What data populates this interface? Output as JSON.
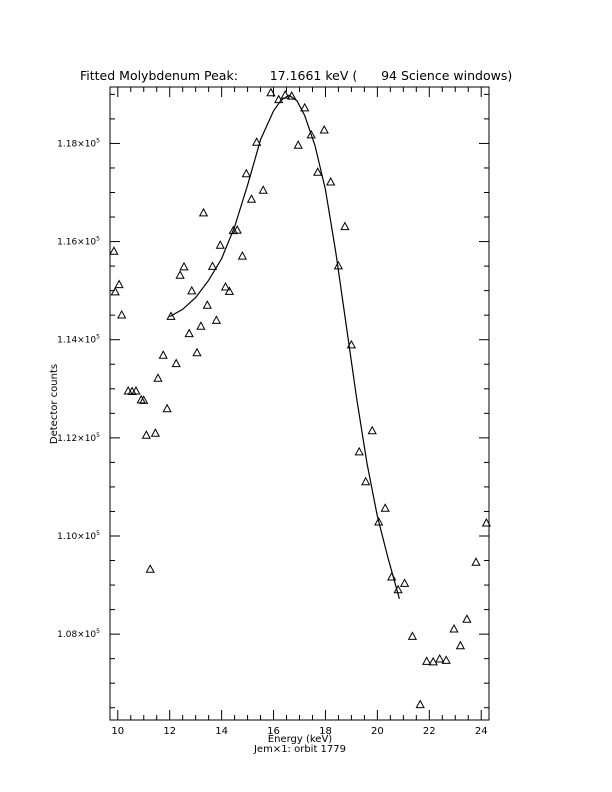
{
  "chart_data": {
    "type": "scatter",
    "title": "Fitted Molybdenum Peak:        17.1661 keV (      94 Science windows)",
    "xlabel": "Energy (keV)",
    "ylabel": "Detector counts",
    "footer": "Jem×1: orbit 1779",
    "xlim": [
      9.7,
      24.3
    ],
    "ylim": [
      1.0625,
      1.1915
    ],
    "y_exponent": "5",
    "x_ticks": [
      10,
      12,
      14,
      16,
      18,
      20,
      22,
      24
    ],
    "y_ticks": [
      {
        "value": 1.08,
        "label": "1.08×10"
      },
      {
        "value": 1.1,
        "label": "1.10×10"
      },
      {
        "value": 1.12,
        "label": "1.12×10"
      },
      {
        "value": 1.14,
        "label": "1.14×10"
      },
      {
        "value": 1.16,
        "label": "1.16×10"
      },
      {
        "value": 1.18,
        "label": "1.18×10"
      }
    ],
    "series": [
      {
        "marker": "triangle",
        "points": [
          [
            9.85,
            1.158
          ],
          [
            9.9,
            1.1497
          ],
          [
            10.05,
            1.1512
          ],
          [
            10.15,
            1.145
          ],
          [
            10.4,
            1.1295
          ],
          [
            10.55,
            1.1294
          ],
          [
            10.7,
            1.1295
          ],
          [
            10.9,
            1.1277
          ],
          [
            11.0,
            1.1276
          ],
          [
            11.1,
            1.1205
          ],
          [
            11.25,
            1.0932
          ],
          [
            11.45,
            1.1209
          ],
          [
            11.55,
            1.1321
          ],
          [
            11.75,
            1.1368
          ],
          [
            11.9,
            1.1259
          ],
          [
            12.05,
            1.1447
          ],
          [
            12.25,
            1.1351
          ],
          [
            12.4,
            1.1531
          ],
          [
            12.55,
            1.1548
          ],
          [
            12.75,
            1.1412
          ],
          [
            12.85,
            1.1499
          ],
          [
            13.05,
            1.1373
          ],
          [
            13.2,
            1.1427
          ],
          [
            13.3,
            1.1658
          ],
          [
            13.45,
            1.147
          ],
          [
            13.65,
            1.1549
          ],
          [
            13.8,
            1.1439
          ],
          [
            13.95,
            1.1592
          ],
          [
            14.15,
            1.1507
          ],
          [
            14.3,
            1.1498
          ],
          [
            14.45,
            1.1622
          ],
          [
            14.6,
            1.1623
          ],
          [
            14.8,
            1.157
          ],
          [
            14.95,
            1.1738
          ],
          [
            15.15,
            1.1686
          ],
          [
            15.35,
            1.1802
          ],
          [
            15.6,
            1.1704
          ],
          [
            15.9,
            1.1903
          ],
          [
            16.2,
            1.1889
          ],
          [
            16.45,
            1.1898
          ],
          [
            16.7,
            1.1896
          ],
          [
            16.95,
            1.1796
          ],
          [
            17.2,
            1.1872
          ],
          [
            17.45,
            1.1817
          ],
          [
            17.7,
            1.1741
          ],
          [
            17.95,
            1.1827
          ],
          [
            18.2,
            1.1721
          ],
          [
            18.5,
            1.155
          ],
          [
            18.75,
            1.163
          ],
          [
            19.0,
            1.1389
          ],
          [
            19.3,
            1.1171
          ],
          [
            19.55,
            1.111
          ],
          [
            19.8,
            1.1214
          ],
          [
            20.05,
            1.1028
          ],
          [
            20.3,
            1.1056
          ],
          [
            20.55,
            1.0916
          ],
          [
            20.8,
            1.089
          ],
          [
            21.05,
            1.0903
          ],
          [
            21.35,
            1.0795
          ],
          [
            21.65,
            1.0656
          ],
          [
            21.9,
            1.0744
          ],
          [
            22.15,
            1.0743
          ],
          [
            22.4,
            1.0749
          ],
          [
            22.65,
            1.0746
          ],
          [
            22.95,
            1.081
          ],
          [
            23.2,
            1.0776
          ],
          [
            23.45,
            1.083
          ],
          [
            23.8,
            1.0946
          ],
          [
            24.2,
            1.1026
          ]
        ]
      },
      {
        "style": "line",
        "points": [
          [
            12.0,
            1.1447
          ],
          [
            12.5,
            1.1462
          ],
          [
            13.0,
            1.1486
          ],
          [
            13.5,
            1.1521
          ],
          [
            14.0,
            1.1565
          ],
          [
            14.5,
            1.163
          ],
          [
            15.0,
            1.1715
          ],
          [
            15.5,
            1.1808
          ],
          [
            16.0,
            1.1866
          ],
          [
            16.3,
            1.1889
          ],
          [
            16.6,
            1.1898
          ],
          [
            16.9,
            1.1887
          ],
          [
            17.2,
            1.1857
          ],
          [
            17.6,
            1.1795
          ],
          [
            18.0,
            1.1705
          ],
          [
            18.4,
            1.1578
          ],
          [
            18.8,
            1.143
          ],
          [
            19.2,
            1.1281
          ],
          [
            19.6,
            1.1148
          ],
          [
            20.0,
            1.104
          ],
          [
            20.4,
            1.0957
          ],
          [
            20.85,
            1.0872
          ]
        ]
      }
    ]
  }
}
